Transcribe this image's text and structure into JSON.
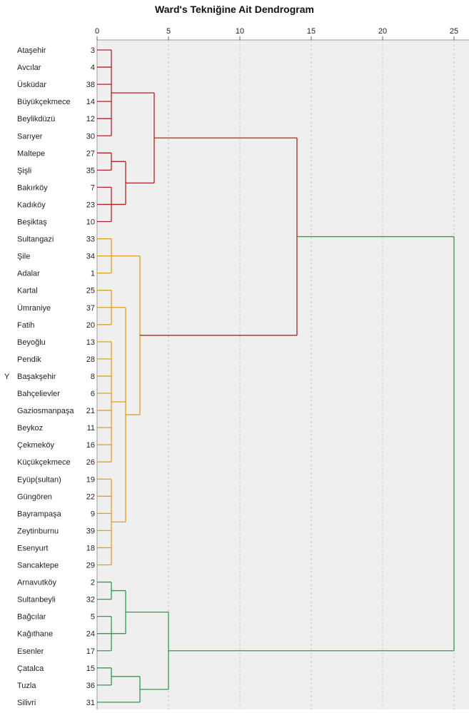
{
  "chart_data": {
    "type": "dendrogram",
    "title": "Ward's Tekniğine Ait Dendrogram",
    "xlim": [
      0,
      25
    ],
    "xticks": [
      0,
      5,
      10,
      15,
      20,
      25
    ],
    "grid": "vertical dashed",
    "marker": "Y",
    "leaves": [
      {
        "name": "Ataşehir",
        "id": "3"
      },
      {
        "name": "Avcılar",
        "id": "4"
      },
      {
        "name": "Üsküdar",
        "id": "38"
      },
      {
        "name": "Büyükçekmece",
        "id": "14"
      },
      {
        "name": "Beylikdüzü",
        "id": "12"
      },
      {
        "name": "Sarıyer",
        "id": "30"
      },
      {
        "name": "Maltepe",
        "id": "27"
      },
      {
        "name": "Şişli",
        "id": "35"
      },
      {
        "name": "Bakırköy",
        "id": "7"
      },
      {
        "name": "Kadıköy",
        "id": "23"
      },
      {
        "name": "Beşiktaş",
        "id": "10"
      },
      {
        "name": "Sultangazi",
        "id": "33"
      },
      {
        "name": "Şile",
        "id": "34"
      },
      {
        "name": "Adalar",
        "id": "1"
      },
      {
        "name": "Kartal",
        "id": "25"
      },
      {
        "name": "Ümraniye",
        "id": "37"
      },
      {
        "name": "Fatih",
        "id": "20"
      },
      {
        "name": "Beyoğlu",
        "id": "13"
      },
      {
        "name": "Pendik",
        "id": "28"
      },
      {
        "name": "Başakşehir",
        "id": "8"
      },
      {
        "name": "Bahçelievler",
        "id": "6"
      },
      {
        "name": "Gaziosmanpaşa",
        "id": "21"
      },
      {
        "name": "Beykoz",
        "id": "11"
      },
      {
        "name": "Çekmeköy",
        "id": "16"
      },
      {
        "name": "Küçükçekmece",
        "id": "26"
      },
      {
        "name": "Eyüp(sultan)",
        "id": "19"
      },
      {
        "name": "Güngören",
        "id": "22"
      },
      {
        "name": "Bayrampaşa",
        "id": "9"
      },
      {
        "name": "Zeytinburnu",
        "id": "39"
      },
      {
        "name": "Esenyurt",
        "id": "18"
      },
      {
        "name": "Sancaktepe",
        "id": "29"
      },
      {
        "name": "Arnavutköy",
        "id": "2"
      },
      {
        "name": "Sultanbeyli",
        "id": "32"
      },
      {
        "name": "Bağcılar",
        "id": "5"
      },
      {
        "name": "Kağıthane",
        "id": "24"
      },
      {
        "name": "Esenler",
        "id": "17"
      },
      {
        "name": "Çatalca",
        "id": "15"
      },
      {
        "name": "Tuzla",
        "id": "36"
      },
      {
        "name": "Silivri",
        "id": "31"
      }
    ],
    "merges": [
      {
        "children": [
          0,
          1,
          2,
          3,
          4,
          5
        ],
        "height": 1,
        "color": "#b22222"
      },
      {
        "children": [
          6,
          7
        ],
        "height": 1,
        "color": "#b22222"
      },
      {
        "children": [
          8,
          9,
          10
        ],
        "height": 1,
        "color": "#b22222"
      },
      {
        "children": [
          "n1",
          "n2"
        ],
        "height": 2,
        "color": "#b22222"
      },
      {
        "children": [
          "n0",
          "n3"
        ],
        "height": 4,
        "color": "#b22222"
      },
      {
        "children": [
          11,
          12,
          13
        ],
        "height": 1,
        "color": "#e0a020"
      },
      {
        "children": [
          14,
          15,
          16
        ],
        "height": 1,
        "color": "#e0a020"
      },
      {
        "children": [
          17,
          18,
          19,
          20,
          21,
          22,
          23,
          24
        ],
        "height": 1,
        "color": "#e0a020"
      },
      {
        "children": [
          25,
          26,
          27,
          28,
          29,
          30
        ],
        "height": 1,
        "color": "#e0a020"
      },
      {
        "children": [
          "n6",
          "n7",
          "n8"
        ],
        "height": 2,
        "color": "#e0a020"
      },
      {
        "children": [
          "n5",
          "n9"
        ],
        "height": 3,
        "color": "#e0a020"
      },
      {
        "children": [
          "n4",
          "n10"
        ],
        "height": 14,
        "color": "#b22222"
      },
      {
        "children": [
          31,
          32
        ],
        "height": 1,
        "color": "#2e9e4a"
      },
      {
        "children": [
          33,
          34,
          35
        ],
        "height": 1,
        "color": "#2e9e4a"
      },
      {
        "children": [
          "n12",
          "n13"
        ],
        "height": 2,
        "color": "#2e9e4a"
      },
      {
        "children": [
          36,
          37
        ],
        "height": 1,
        "color": "#2e9e4a"
      },
      {
        "children": [
          38,
          "n15"
        ],
        "height": 3,
        "color": "#2e9e4a"
      },
      {
        "children": [
          "n14",
          "n16"
        ],
        "height": 5,
        "color": "#2e9e4a"
      },
      {
        "children": [
          "n11",
          "n17"
        ],
        "height": 25,
        "color": "#2e9e4a"
      }
    ]
  }
}
